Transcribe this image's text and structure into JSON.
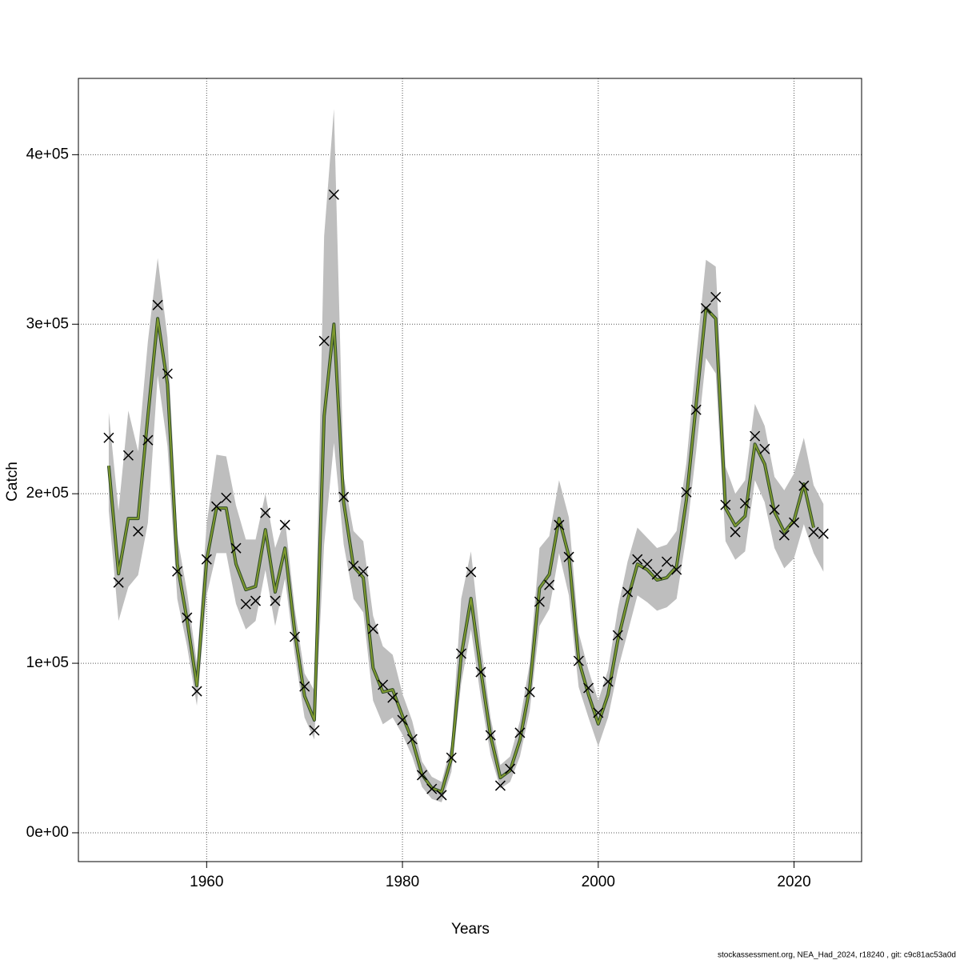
{
  "chart_data": {
    "type": "line",
    "x_label": "Years",
    "y_label": "Catch",
    "footnote": "stockassessment.org, NEA_Had_2024, r18240 , git: c9c81ac53a0d",
    "x": [
      1950,
      1951,
      1952,
      1953,
      1954,
      1955,
      1956,
      1957,
      1958,
      1959,
      1960,
      1961,
      1962,
      1963,
      1964,
      1965,
      1966,
      1967,
      1968,
      1969,
      1970,
      1971,
      1972,
      1973,
      1974,
      1975,
      1976,
      1977,
      1978,
      1979,
      1980,
      1981,
      1982,
      1983,
      1984,
      1985,
      1986,
      1987,
      1988,
      1989,
      1990,
      1991,
      1992,
      1993,
      1994,
      1995,
      1996,
      1997,
      1998,
      1999,
      2000,
      2001,
      2002,
      2003,
      2004,
      2005,
      2006,
      2007,
      2008,
      2009,
      2010,
      2011,
      2012,
      2013,
      2014,
      2015,
      2016,
      2017,
      2018,
      2019,
      2020,
      2021,
      2022,
      2023
    ],
    "estimate": {
      "color": "#7f9a2f",
      "values": [
        216500,
        152800,
        185400,
        185400,
        245800,
        303300,
        264600,
        158500,
        125500,
        86800,
        160800,
        191500,
        191500,
        158500,
        143400,
        145300,
        178800,
        142000,
        167900,
        118400,
        80700,
        66500,
        245800,
        300000,
        194800,
        157100,
        150500,
        97200,
        83000,
        84400,
        68900,
        54700,
        34400,
        26400,
        24100,
        43900,
        104200,
        138200,
        95800,
        57100,
        32500,
        36800,
        54700,
        85400,
        144300,
        152400,
        185400,
        163200,
        101900,
        81600,
        64200,
        81600,
        113700,
        137300,
        158500,
        155200,
        149100,
        150500,
        157100,
        196200,
        252800,
        309400,
        303300,
        191500,
        181100,
        186800,
        229200,
        217500,
        189200,
        177400,
        184400,
        205700,
        180000,
        null
      ]
    },
    "lower": [
      190000,
      125000,
      145000,
      152000,
      183000,
      270000,
      228000,
      138000,
      110000,
      75000,
      140000,
      165000,
      165000,
      135000,
      120000,
      125000,
      155000,
      122000,
      150000,
      105000,
      68000,
      55000,
      170000,
      230000,
      170000,
      138000,
      130000,
      78000,
      64000,
      68000,
      58000,
      45000,
      27000,
      20000,
      18000,
      36000,
      88000,
      120000,
      80000,
      46000,
      26000,
      30000,
      45000,
      72000,
      122000,
      132000,
      165000,
      140000,
      86000,
      68000,
      51000,
      68000,
      96000,
      118000,
      140000,
      136000,
      131000,
      133000,
      138000,
      175000,
      225000,
      280000,
      271000,
      172000,
      161000,
      166000,
      208000,
      195000,
      168000,
      156000,
      162000,
      182000,
      165000,
      154000
    ],
    "upper": [
      248000,
      190000,
      249000,
      225000,
      290000,
      339000,
      292000,
      175000,
      142000,
      100000,
      182000,
      223000,
      222000,
      193000,
      173000,
      173000,
      200000,
      168000,
      185000,
      132000,
      94000,
      84000,
      352000,
      427000,
      210000,
      178000,
      172000,
      128000,
      110000,
      105000,
      82000,
      66000,
      42000,
      33000,
      30000,
      52000,
      138000,
      166000,
      112000,
      68000,
      40000,
      45000,
      66000,
      100000,
      168000,
      175000,
      208000,
      186000,
      118000,
      96000,
      78000,
      96000,
      132000,
      160000,
      180000,
      174000,
      168000,
      170000,
      178000,
      218000,
      280000,
      338000,
      334000,
      216000,
      200000,
      208000,
      253000,
      240000,
      210000,
      202000,
      212000,
      233000,
      205000,
      194000
    ],
    "band_color": "#bebebe",
    "observed": {
      "color": "#000000",
      "values": [
        233000,
        147600,
        222600,
        177800,
        231600,
        311300,
        270800,
        154200,
        126900,
        83500,
        161300,
        192500,
        197600,
        167900,
        134900,
        136800,
        188700,
        136800,
        181600,
        115600,
        86300,
        60400,
        290100,
        376400,
        198100,
        157500,
        154200,
        120300,
        87300,
        79700,
        66500,
        55200,
        34000,
        25900,
        22200,
        44300,
        105700,
        153800,
        94800,
        57500,
        27800,
        37700,
        59000,
        83000,
        136300,
        146200,
        181600,
        162700,
        101400,
        85400,
        70800,
        89200,
        116500,
        142000,
        161300,
        158500,
        152400,
        159900,
        155200,
        200900,
        249500,
        309400,
        316000,
        193400,
        177400,
        194300,
        234000,
        226400,
        190600,
        175500,
        183000,
        204700,
        177400,
        176400
      ]
    },
    "xlim": [
      1946.9,
      2026.9
    ],
    "xticks": [
      1960,
      1980,
      2000,
      2020
    ],
    "ylim": [
      -17000,
      445000
    ],
    "yticks": [
      {
        "value": 0,
        "label": "0e+00"
      },
      {
        "value": 100000,
        "label": "1e+05"
      },
      {
        "value": 200000,
        "label": "2e+05"
      },
      {
        "value": 300000,
        "label": "3e+05"
      },
      {
        "value": 400000,
        "label": "4e+05"
      }
    ],
    "grid": true
  }
}
